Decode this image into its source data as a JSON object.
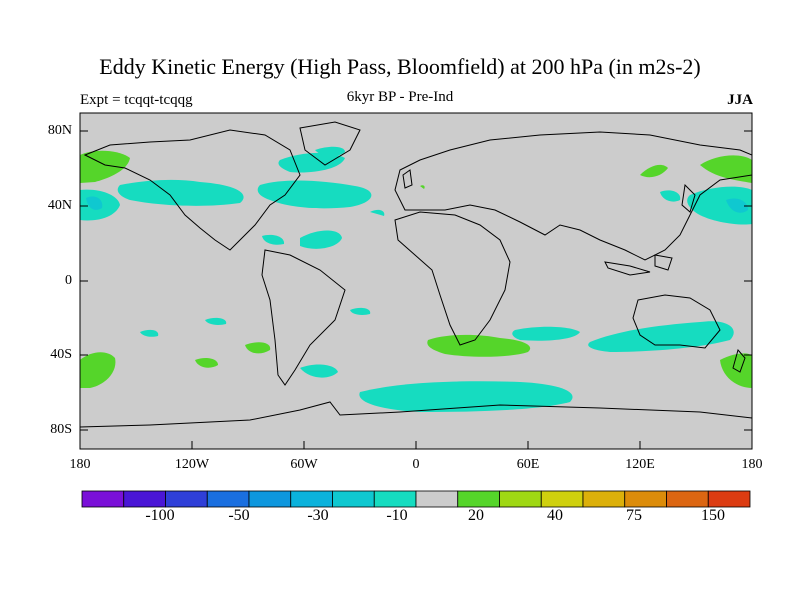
{
  "title": "Eddy Kinetic Energy (High Pass, Bloomfield) at 200 hPa (in m2s-2)",
  "experiment": "Expt = tcqqt-tcqqg",
  "comparison": "6kyr BP - Pre-Ind",
  "season": "JJA",
  "lat_labels": [
    "80N",
    "40N",
    "0",
    "40S",
    "80S"
  ],
  "lon_labels": [
    "180",
    "120W",
    "60W",
    "0",
    "60E",
    "120E",
    "180"
  ],
  "colorbar": {
    "colors": [
      "#7a10d8",
      "#4a16d6",
      "#2f3fd8",
      "#1a6fe0",
      "#0e97de",
      "#0bb2dc",
      "#0fc8d0",
      "#16dcc0",
      "#cccccc",
      "#55d52a",
      "#9fd813",
      "#cfd00e",
      "#dcb00a",
      "#dc8c0a",
      "#dc6612",
      "#dc3c12"
    ],
    "labels": [
      "-100",
      "-50",
      "-30",
      "-10",
      "20",
      "40",
      "75",
      "150"
    ]
  },
  "colors": {
    "land_ocean": "#cccccc",
    "neg_light": "#16dcc0",
    "neg_mid": "#0fc8d0",
    "pos_light": "#55d52a",
    "pos_mid": "#9fd813"
  }
}
